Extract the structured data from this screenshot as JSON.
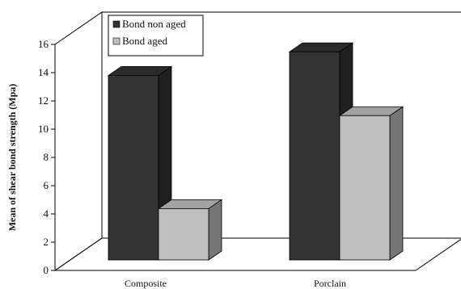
{
  "chart_data": {
    "type": "bar",
    "ylabel": "Mean of shear bond strength (Mpa)",
    "ylim": [
      0,
      16
    ],
    "yticks": [
      0,
      2,
      4,
      6,
      8,
      10,
      12,
      14,
      16
    ],
    "categories": [
      "Composite",
      "Porclain"
    ],
    "series": [
      {
        "name": "Bond non aged",
        "values": [
          13.3,
          15.0
        ],
        "color": "#333333"
      },
      {
        "name": "Bond aged",
        "values": [
          3.7,
          10.4
        ],
        "color": "#bfbfbf"
      }
    ],
    "legend_position": "top-left",
    "three_d": true
  }
}
